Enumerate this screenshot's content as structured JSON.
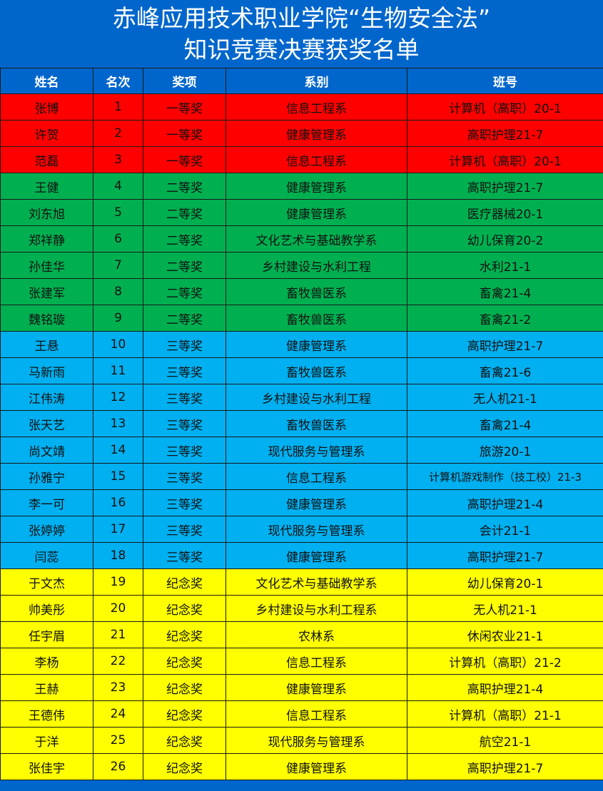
{
  "title": {
    "line1": "赤峰应用技术职业学院“生物安全法”",
    "line2": "知识竞赛决赛获奖名单"
  },
  "colors": {
    "header": "#0066cc",
    "一等奖": "#ff0000",
    "二等奖": "#00b050",
    "三等奖": "#00b0f0",
    "纪念奖": "#ffff00"
  },
  "headers": [
    "姓名",
    "名次",
    "奖项",
    "系别",
    "班号"
  ],
  "rows": [
    [
      "张博",
      "1",
      "一等奖",
      "信息工程系",
      "计算机（高职）20-1"
    ],
    [
      "许贺",
      "2",
      "一等奖",
      "健康管理系",
      "高职护理21-7"
    ],
    [
      "范磊",
      "3",
      "一等奖",
      "信息工程系",
      "计算机（高职）20-1"
    ],
    [
      "王健",
      "4",
      "二等奖",
      "健康管理系",
      "高职护理21-7"
    ],
    [
      "刘东旭",
      "5",
      "二等奖",
      "健康管理系",
      "医疗器械20-1"
    ],
    [
      "郑祥静",
      "6",
      "二等奖",
      "文化艺术与基础教学系",
      "幼儿保育20-2"
    ],
    [
      "孙佳华",
      "7",
      "二等奖",
      "乡村建设与水利工程",
      "水利21-1"
    ],
    [
      "张建军",
      "8",
      "二等奖",
      "畜牧兽医系",
      "畜禽21-4"
    ],
    [
      "魏铭璇",
      "9",
      "二等奖",
      "畜牧兽医系",
      "畜禽21-2"
    ],
    [
      "王悬",
      "10",
      "三等奖",
      "健康管理系",
      "高职护理21-7"
    ],
    [
      "马新雨",
      "11",
      "三等奖",
      "畜牧兽医系",
      "畜禽21-6"
    ],
    [
      "江伟涛",
      "12",
      "三等奖",
      "乡村建设与水利工程",
      "无人机21-1"
    ],
    [
      "张天艺",
      "13",
      "三等奖",
      "畜牧兽医系",
      "畜禽21-4"
    ],
    [
      "尚文靖",
      "14",
      "三等奖",
      "现代服务与管理系",
      "旅游20-1"
    ],
    [
      "孙雅宁",
      "15",
      "三等奖",
      "信息工程系",
      "计算机游戏制作（技工校）21-3"
    ],
    [
      "李一可",
      "16",
      "三等奖",
      "健康管理系",
      "高职护理21-4"
    ],
    [
      "张婷婷",
      "17",
      "三等奖",
      "现代服务与管理系",
      "会计21-1"
    ],
    [
      "闫蕊",
      "18",
      "三等奖",
      "健康管理系",
      "高职护理21-7"
    ],
    [
      "于文杰",
      "19",
      "纪念奖",
      "文化艺术与基础教学系",
      "幼儿保育20-1"
    ],
    [
      "帅美彤",
      "20",
      "纪念奖",
      "乡村建设与水利工程系",
      "无人机21-1"
    ],
    [
      "任宇眉",
      "21",
      "纪念奖",
      "农林系",
      "休闲农业21-1"
    ],
    [
      "李杨",
      "22",
      "纪念奖",
      "信息工程系",
      "计算机（高职）21-2"
    ],
    [
      "王赫",
      "23",
      "纪念奖",
      "健康管理系",
      "高职护理21-4"
    ],
    [
      "王德伟",
      "24",
      "纪念奖",
      "信息工程系",
      "计算机（高职）21-1"
    ],
    [
      "于洋",
      "25",
      "纪念奖",
      "现代服务与管理系",
      "航空21-1"
    ],
    [
      "张佳宇",
      "26",
      "纪念奖",
      "健康管理系",
      "高职护理21-7"
    ]
  ]
}
